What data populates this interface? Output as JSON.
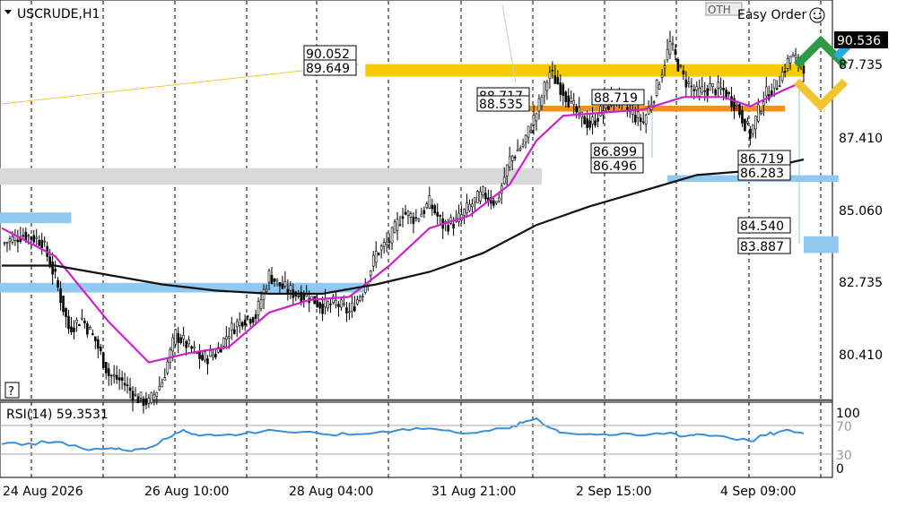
{
  "chart": {
    "symbol": "USCRUDE,H1",
    "toolbar_glyphs": "OTH",
    "order_label": "Easy Order",
    "help_label": "?",
    "current_price": "90.536",
    "price_ticks": [
      "87.735",
      "87.410",
      "85.060",
      "82.735",
      "80.410"
    ],
    "time_ticks": [
      "24 Aug 2026",
      "26 Aug 10:00",
      "28 Aug 04:00",
      "31 Aug 21:00",
      "2 Sep 15:00",
      "4 Sep 09:00"
    ],
    "level_labels": {
      "l1": "90.052",
      "l2": "89.649",
      "l3": "88.717",
      "l4": "88.535",
      "l5": "88.719",
      "l6": "86.899",
      "l7": "86.496",
      "l8": "86.719",
      "l9": "86.283",
      "l10": "84.540",
      "l11": "83.887"
    },
    "rsi": {
      "label": "RSI(14) 59.3531",
      "ticks": [
        "100",
        "70",
        "30",
        "0"
      ]
    }
  },
  "chart_data": {
    "type": "candlestick",
    "title": "USCRUDE,H1",
    "timeframe": "H1",
    "ylim": [
      78.6,
      91.9
    ],
    "y_ticks": [
      80.41,
      82.735,
      85.06,
      87.41,
      87.735
    ],
    "x_ticks": [
      "24 Aug 2026",
      "26 Aug 10:00",
      "28 Aug 04:00",
      "31 Aug 21:00",
      "2 Sep 15:00",
      "4 Sep 09:00"
    ],
    "close_path": [
      [
        0,
        84.3
      ],
      [
        8,
        84.6
      ],
      [
        15,
        84.4
      ],
      [
        20,
        83.2
      ],
      [
        25,
        81.6
      ],
      [
        30,
        81.9
      ],
      [
        35,
        81.2
      ],
      [
        40,
        80.1
      ],
      [
        45,
        79.9
      ],
      [
        50,
        79.4
      ],
      [
        55,
        79.2
      ],
      [
        60,
        79.9
      ],
      [
        65,
        81.4
      ],
      [
        70,
        81.0
      ],
      [
        75,
        80.6
      ],
      [
        80,
        80.8
      ],
      [
        85,
        81.5
      ],
      [
        90,
        81.9
      ],
      [
        95,
        82.0
      ],
      [
        100,
        83.3
      ],
      [
        105,
        82.9
      ],
      [
        110,
        82.7
      ],
      [
        115,
        82.6
      ],
      [
        120,
        82.3
      ],
      [
        125,
        82.4
      ],
      [
        130,
        82.1
      ],
      [
        135,
        82.8
      ],
      [
        140,
        84.0
      ],
      [
        145,
        84.4
      ],
      [
        150,
        85.3
      ],
      [
        155,
        85.1
      ],
      [
        160,
        85.6
      ],
      [
        165,
        84.9
      ],
      [
        170,
        85.0
      ],
      [
        175,
        85.5
      ],
      [
        180,
        85.9
      ],
      [
        185,
        85.6
      ],
      [
        190,
        87.0
      ],
      [
        195,
        87.5
      ],
      [
        200,
        88.5
      ],
      [
        205,
        89.8
      ],
      [
        210,
        89.2
      ],
      [
        215,
        88.5
      ],
      [
        220,
        88.1
      ],
      [
        225,
        88.6
      ],
      [
        230,
        89.0
      ],
      [
        235,
        88.5
      ],
      [
        240,
        88.2
      ],
      [
        245,
        89.3
      ],
      [
        250,
        90.7
      ],
      [
        255,
        89.6
      ],
      [
        260,
        89.1
      ],
      [
        265,
        89.3
      ],
      [
        270,
        89.2
      ],
      [
        275,
        88.7
      ],
      [
        280,
        87.8
      ],
      [
        285,
        89.0
      ],
      [
        290,
        89.4
      ],
      [
        295,
        90.3
      ],
      [
        300,
        90.0
      ]
    ],
    "moving_averages": [
      {
        "color": "#cc22cc",
        "points": [
          [
            0,
            84.8
          ],
          [
            20,
            83.9
          ],
          [
            40,
            81.8
          ],
          [
            55,
            80.5
          ],
          [
            70,
            80.8
          ],
          [
            85,
            81.0
          ],
          [
            100,
            82.1
          ],
          [
            115,
            82.5
          ],
          [
            130,
            82.6
          ],
          [
            145,
            83.6
          ],
          [
            160,
            84.8
          ],
          [
            175,
            85.2
          ],
          [
            190,
            86.2
          ],
          [
            200,
            87.6
          ],
          [
            210,
            88.4
          ],
          [
            225,
            88.5
          ],
          [
            240,
            88.6
          ],
          [
            255,
            89.0
          ],
          [
            270,
            89.0
          ],
          [
            280,
            88.7
          ],
          [
            292,
            89.2
          ],
          [
            300,
            89.5
          ]
        ]
      },
      {
        "color": "#111111",
        "points": [
          [
            0,
            83.6
          ],
          [
            20,
            83.6
          ],
          [
            40,
            83.3
          ],
          [
            60,
            83.0
          ],
          [
            80,
            82.8
          ],
          [
            100,
            82.7
          ],
          [
            120,
            82.7
          ],
          [
            140,
            83.0
          ],
          [
            160,
            83.4
          ],
          [
            180,
            84.0
          ],
          [
            200,
            84.9
          ],
          [
            220,
            85.5
          ],
          [
            240,
            86.0
          ],
          [
            260,
            86.5
          ],
          [
            275,
            86.6
          ],
          [
            290,
            86.8
          ],
          [
            300,
            87.0
          ]
        ]
      }
    ],
    "price_levels": [
      {
        "y": [
          89.649,
          90.052
        ],
        "color": "#f5cc00",
        "x_from": 136,
        "x_to": 300
      },
      {
        "y": [
          88.535,
          88.719
        ],
        "color": "#f09020",
        "x_from": 196,
        "x_to": 293
      },
      {
        "y": [
          86.283,
          86.496
        ],
        "color": "#90c8f0",
        "x_from": 249,
        "x_to": 313
      },
      {
        "y": [
          84.004,
          84.54
        ],
        "color": "#90c8f0",
        "x_from": 300,
        "x_to": 313
      },
      {
        "y": [
          86.19,
          86.72
        ],
        "color": "#d8d8d8",
        "x_from": -2,
        "x_to": 202
      },
      {
        "y": [
          84.96,
          85.3
        ],
        "color": "#90c8f0",
        "x_from": -2,
        "x_to": 26
      },
      {
        "y": [
          82.74,
          83.05
        ],
        "color": "#90c8f0",
        "x_from": -2,
        "x_to": 136
      }
    ],
    "last_price": 90.536,
    "rsi": {
      "period": 14,
      "last": 59.3531,
      "ylim": [
        0,
        100
      ],
      "levels": [
        70,
        30
      ],
      "points": [
        [
          0,
          44
        ],
        [
          10,
          45
        ],
        [
          20,
          47
        ],
        [
          30,
          38
        ],
        [
          40,
          38
        ],
        [
          45,
          36
        ],
        [
          50,
          37
        ],
        [
          55,
          39
        ],
        [
          62,
          52
        ],
        [
          68,
          64
        ],
        [
          72,
          58
        ],
        [
          80,
          56
        ],
        [
          90,
          58
        ],
        [
          100,
          64
        ],
        [
          110,
          60
        ],
        [
          120,
          58
        ],
        [
          130,
          57
        ],
        [
          140,
          60
        ],
        [
          150,
          65
        ],
        [
          160,
          66
        ],
        [
          170,
          60
        ],
        [
          180,
          62
        ],
        [
          190,
          66
        ],
        [
          195,
          74
        ],
        [
          200,
          80
        ],
        [
          205,
          67
        ],
        [
          210,
          60
        ],
        [
          220,
          58
        ],
        [
          230,
          57
        ],
        [
          240,
          56
        ],
        [
          250,
          60
        ],
        [
          255,
          55
        ],
        [
          260,
          58
        ],
        [
          270,
          55
        ],
        [
          280,
          48
        ],
        [
          285,
          56
        ],
        [
          290,
          60
        ],
        [
          295,
          63
        ],
        [
          300,
          59
        ]
      ]
    }
  }
}
